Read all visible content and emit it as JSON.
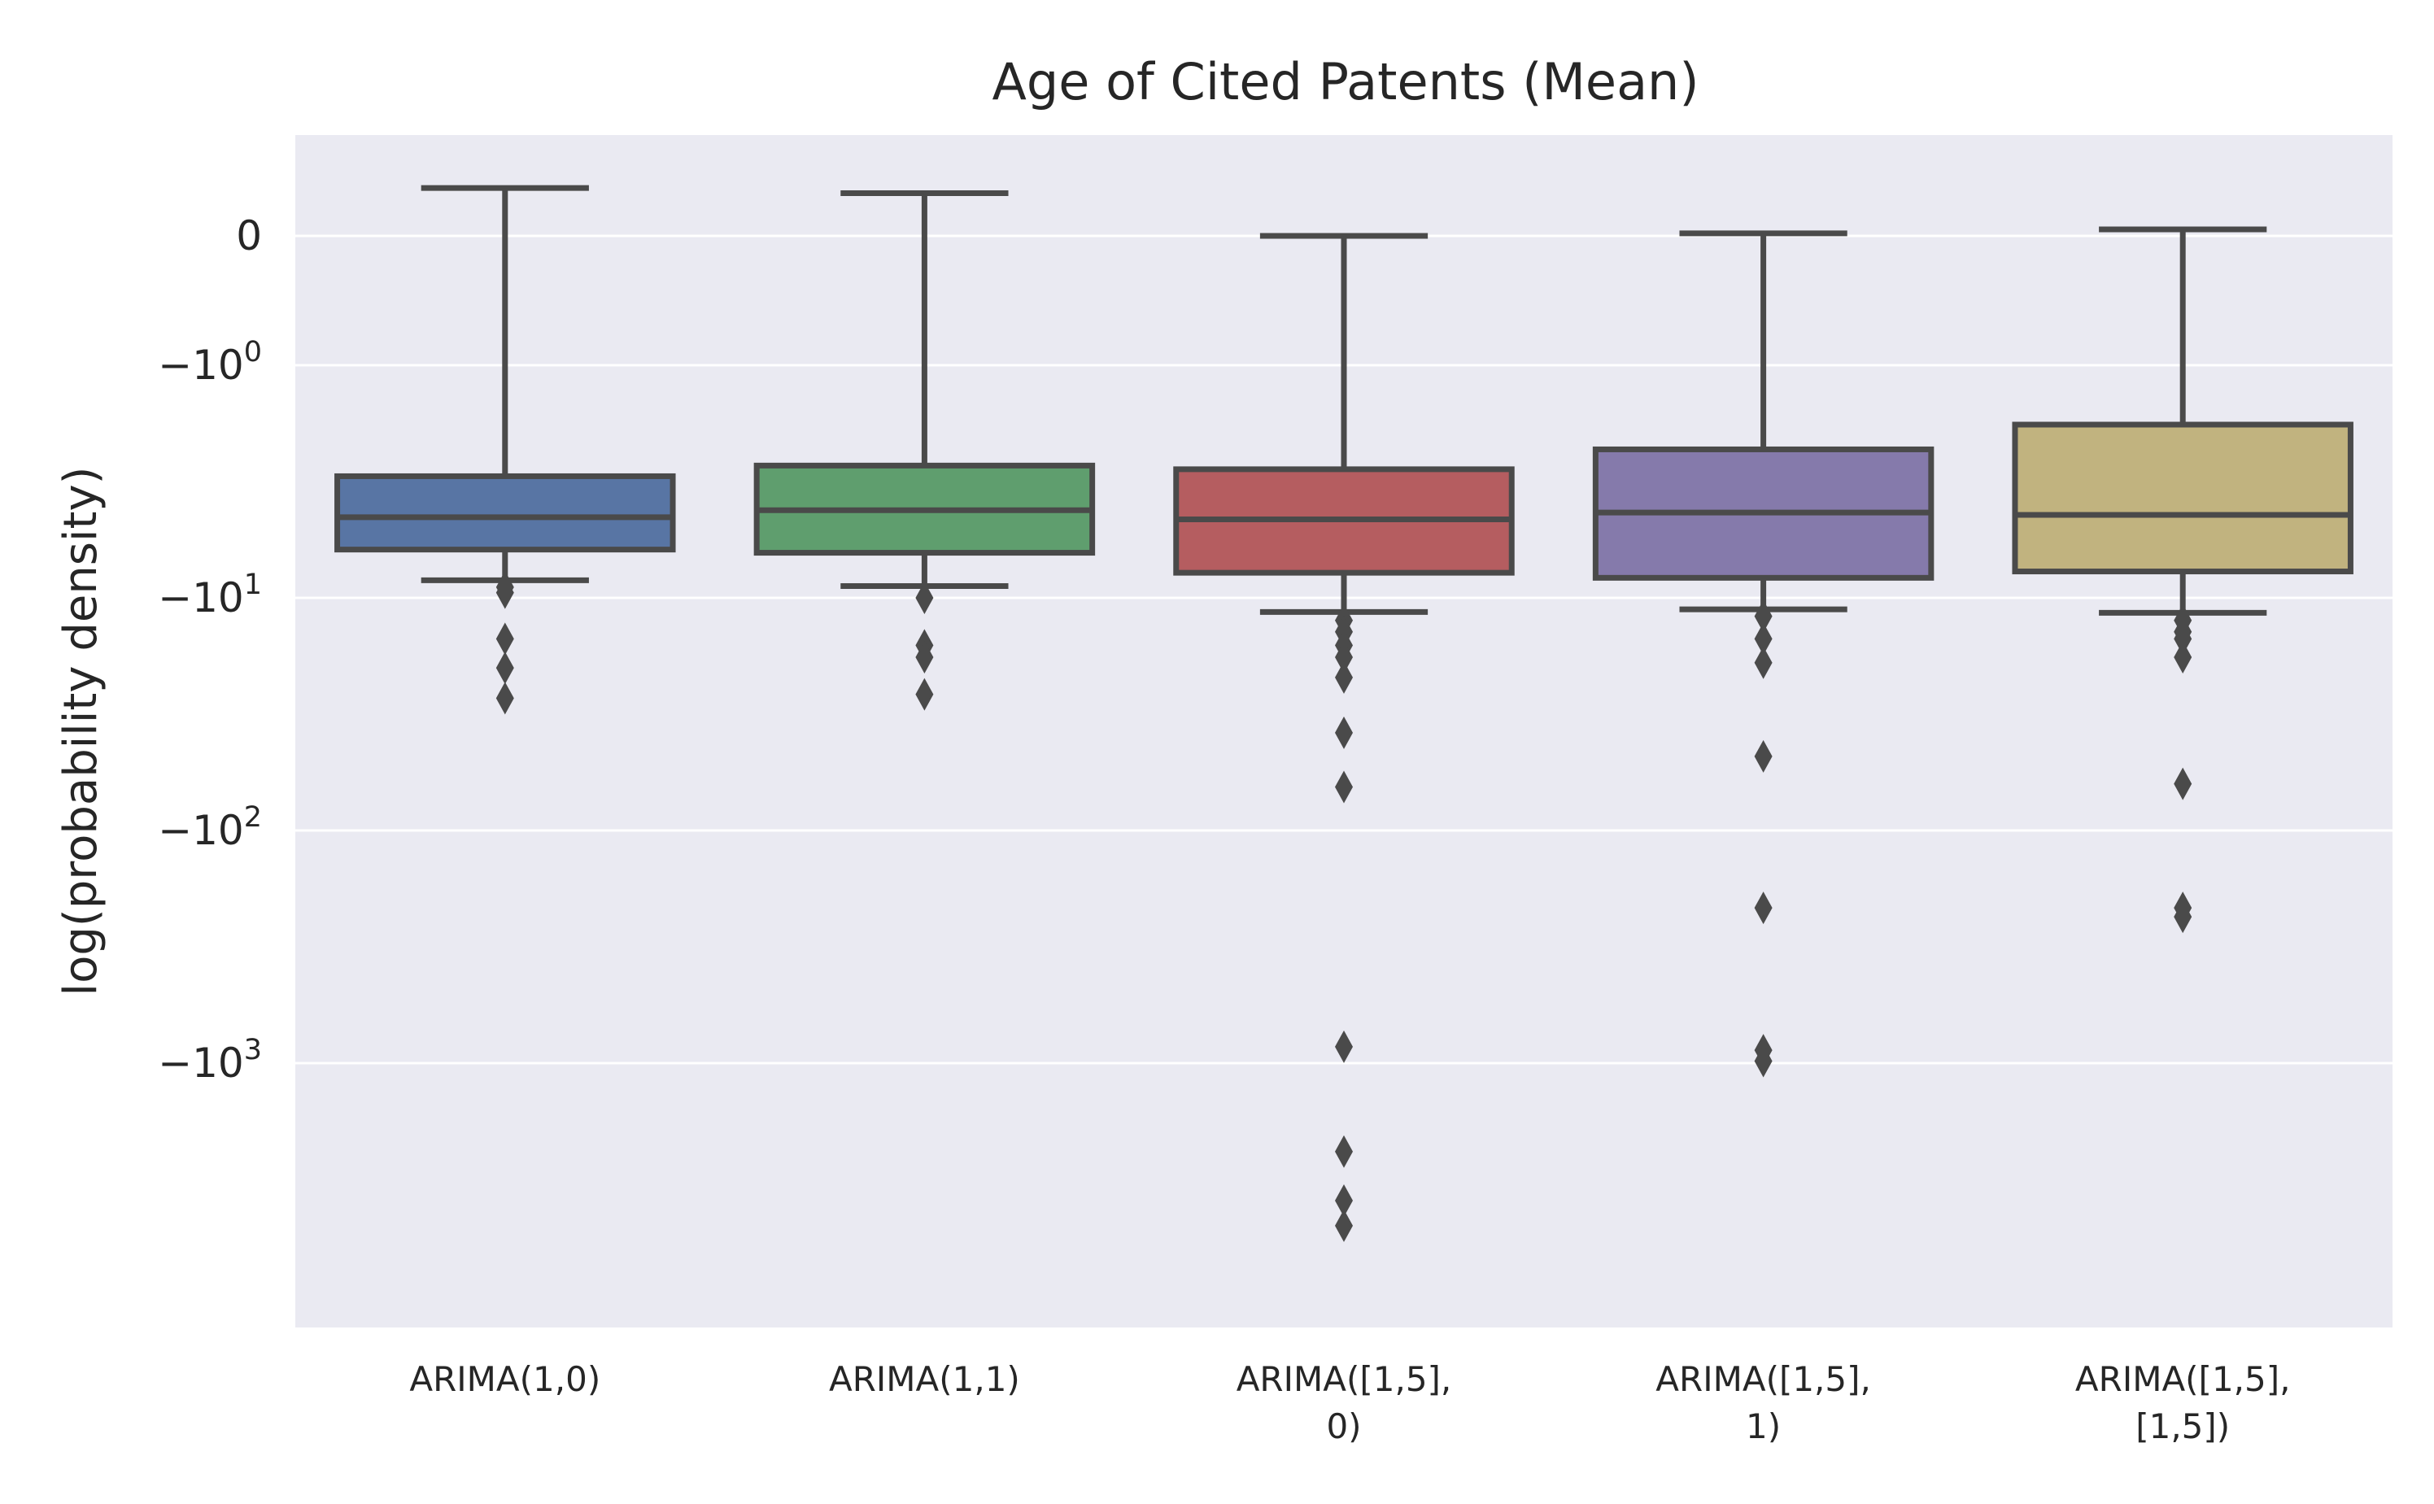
{
  "chart_data": {
    "type": "box",
    "title": "Age of Cited Patents (Mean)",
    "xlabel": "",
    "ylabel": "log(probability density)",
    "yscale": "symlog",
    "ylim": [
      -7000,
      0.37
    ],
    "yticks": [
      {
        "value": 0,
        "label": "0",
        "base": "0",
        "exp": ""
      },
      {
        "value": -1,
        "label": "−10^0",
        "base": "−10",
        "exp": "0"
      },
      {
        "value": -10,
        "label": "−10^1",
        "base": "−10",
        "exp": "1"
      },
      {
        "value": -100,
        "label": "−10^2",
        "base": "−10",
        "exp": "2"
      },
      {
        "value": -1000,
        "label": "−10^3",
        "base": "−10",
        "exp": "3"
      }
    ],
    "grid": true,
    "background": "#eaeaf2",
    "grid_color": "#ffffff",
    "edge_color": "#4a4a4a",
    "categories": [
      {
        "label_lines": [
          "ARIMA(1,0)"
        ],
        "color": "#5875a4",
        "whisker_high": 0.37,
        "q3": -3.0,
        "median": -4.5,
        "q1": -6.2,
        "whisker_low": -8.4,
        "outliers": [
          -9.0,
          -9.5,
          -15,
          -20,
          -27
        ]
      },
      {
        "label_lines": [
          "ARIMA(1,1)"
        ],
        "color": "#5f9e6e",
        "whisker_high": 0.33,
        "q3": -2.7,
        "median": -4.2,
        "q1": -6.4,
        "whisker_low": -8.9,
        "outliers": [
          -10,
          -16,
          -18,
          -26
        ]
      },
      {
        "label_lines": [
          "ARIMA([1,5],",
          "0)"
        ],
        "color": "#b55d60",
        "whisker_high": 0.0,
        "q3": -2.8,
        "median": -4.6,
        "q1": -7.8,
        "whisker_low": -11.5,
        "outliers": [
          -12.5,
          -14,
          -16,
          -18,
          -22,
          -38,
          -65,
          -850,
          -2400,
          -3900,
          -5000
        ]
      },
      {
        "label_lines": [
          "ARIMA([1,5],",
          "1)"
        ],
        "color": "#857aab",
        "whisker_high": 0.02,
        "q3": -2.3,
        "median": -4.3,
        "q1": -8.2,
        "whisker_low": -11.2,
        "outliers": [
          -12,
          -15,
          -19,
          -48,
          -215,
          -880,
          -980
        ]
      },
      {
        "label_lines": [
          "ARIMA([1,5],",
          "[1,5])"
        ],
        "color": "#c1b37f",
        "whisker_high": 0.05,
        "q3": -1.8,
        "median": -4.4,
        "q1": -7.7,
        "whisker_low": -11.6,
        "outliers": [
          -12.5,
          -14,
          -15,
          -18,
          -63,
          -215,
          -235
        ]
      }
    ]
  }
}
